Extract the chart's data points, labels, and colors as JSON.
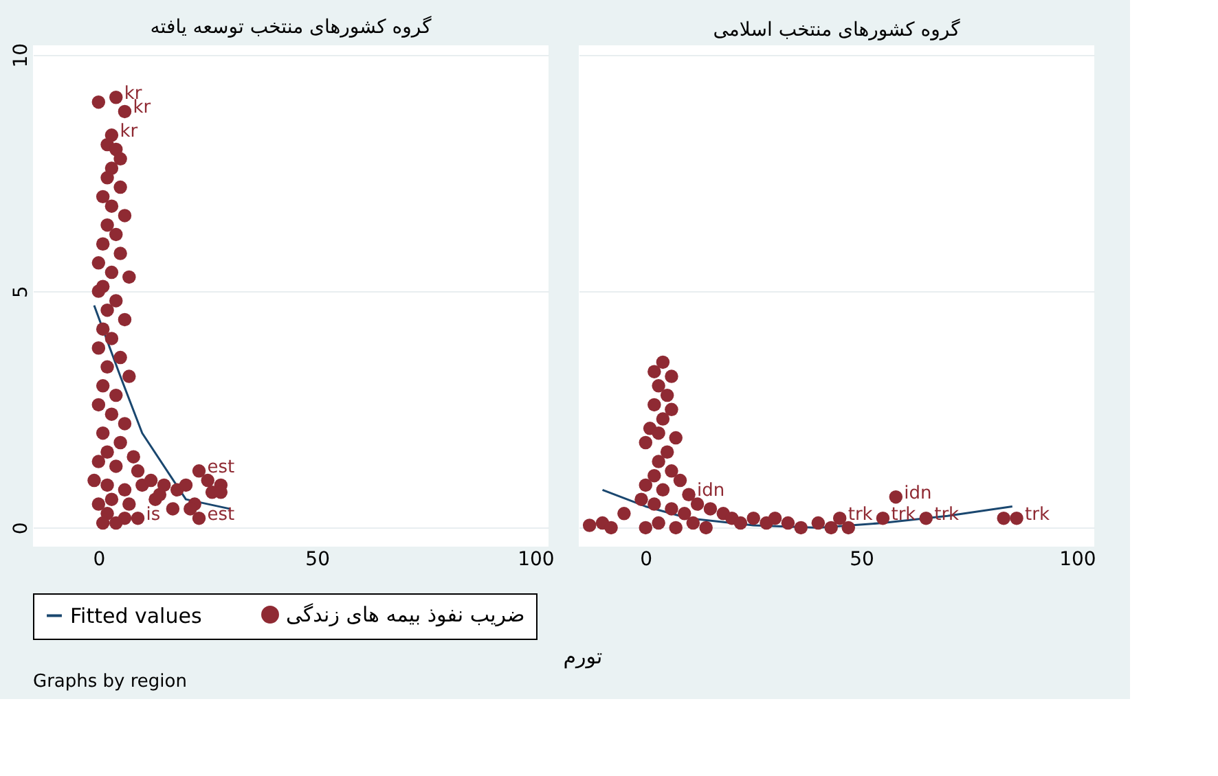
{
  "chart_data": [
    {
      "type": "scatter",
      "title": "گروه کشورهای منتخب توسعه یافته",
      "xlabel": "تورم",
      "legend": "bottom",
      "annotations": [
        "Graphs by region"
      ],
      "xlim": [
        -15,
        103
      ],
      "xticks": [
        0,
        50,
        100
      ],
      "ylim": [
        -0.4,
        10.2
      ],
      "yticks": [
        0,
        5,
        10
      ],
      "grid": "y",
      "series": [
        {
          "name": "Fitted values",
          "type": "line",
          "color": "#1a476f",
          "x": [
            -1,
            5,
            10,
            20,
            30
          ],
          "values": [
            4.7,
            3.2,
            2.0,
            0.6,
            0.4
          ]
        },
        {
          "name": "ضریب نفوذ بیمه های زندگی",
          "marker": "circle",
          "color": "#8f2a33",
          "x": [
            0,
            4,
            6,
            3,
            2,
            4,
            5,
            3,
            2,
            5,
            1,
            3,
            6,
            2,
            4,
            1,
            5,
            0,
            3,
            7,
            1,
            0,
            4,
            2,
            6,
            1,
            3,
            0,
            5,
            2,
            7,
            1,
            4,
            0,
            3,
            6,
            1,
            5,
            2,
            8,
            0,
            4,
            9,
            -1,
            2,
            6,
            10,
            12,
            15,
            18,
            20,
            23,
            25,
            28,
            26,
            22,
            17,
            13,
            21,
            23,
            28,
            9,
            6,
            2,
            1,
            4,
            14,
            3,
            0,
            7
          ],
          "values": [
            9.0,
            9.1,
            8.8,
            8.3,
            8.1,
            8.0,
            7.8,
            7.6,
            7.4,
            7.2,
            7.0,
            6.8,
            6.6,
            6.4,
            6.2,
            6.0,
            5.8,
            5.6,
            5.4,
            5.3,
            5.1,
            5.0,
            4.8,
            4.6,
            4.4,
            4.2,
            4.0,
            3.8,
            3.6,
            3.4,
            3.2,
            3.0,
            2.8,
            2.6,
            2.4,
            2.2,
            2.0,
            1.8,
            1.6,
            1.5,
            1.4,
            1.3,
            1.2,
            1.0,
            0.9,
            0.8,
            0.9,
            1.0,
            0.9,
            0.8,
            0.9,
            1.2,
            1.0,
            0.9,
            0.75,
            0.5,
            0.4,
            0.6,
            0.4,
            0.2,
            0.75,
            0.2,
            0.2,
            0.3,
            0.1,
            0.1,
            0.7,
            0.6,
            0.5,
            0.5
          ],
          "value_labels": [
            null,
            "kr",
            "kr",
            "kr",
            null,
            null,
            null,
            null,
            null,
            null,
            null,
            null,
            null,
            null,
            null,
            null,
            null,
            null,
            null,
            null,
            null,
            null,
            null,
            null,
            null,
            null,
            null,
            null,
            null,
            null,
            null,
            null,
            null,
            null,
            null,
            null,
            null,
            null,
            null,
            null,
            null,
            null,
            null,
            null,
            null,
            null,
            null,
            null,
            null,
            null,
            null,
            "est",
            null,
            null,
            null,
            null,
            null,
            null,
            null,
            "est",
            null,
            "is",
            null,
            null,
            null,
            null,
            null,
            null,
            null,
            null
          ]
        }
      ]
    },
    {
      "type": "scatter",
      "title": "گروه کشورهای منتخب اسلامی",
      "xlim": [
        -15.5,
        104
      ],
      "xticks": [
        0,
        50,
        100
      ],
      "ylim": [
        -0.4,
        10.2
      ],
      "yticks": [
        0,
        5,
        10
      ],
      "grid": "y",
      "tick_labels": "x",
      "series": [
        {
          "type": "line",
          "color": "#1a476f",
          "x": [
            -10,
            0,
            10,
            25,
            40,
            55,
            70,
            85
          ],
          "values": [
            0.8,
            0.45,
            0.2,
            0.05,
            0.0,
            0.1,
            0.25,
            0.45
          ]
        },
        {
          "marker": "circle",
          "color": "#8f2a33",
          "x": [
            4,
            2,
            6,
            3,
            5,
            2,
            6,
            4,
            1,
            3,
            7,
            0,
            5,
            3,
            6,
            2,
            8,
            0,
            4,
            -1,
            10,
            2,
            12,
            6,
            15,
            -5,
            9,
            18,
            -10,
            -13,
            -8,
            0,
            3,
            7,
            11,
            14,
            20,
            22,
            25,
            28,
            30,
            33,
            36,
            40,
            43,
            45,
            47,
            55,
            58,
            65,
            83,
            86
          ],
          "values": [
            3.5,
            3.3,
            3.2,
            3.0,
            2.8,
            2.6,
            2.5,
            2.3,
            2.1,
            2.0,
            1.9,
            1.8,
            1.6,
            1.4,
            1.2,
            1.1,
            1.0,
            0.9,
            0.8,
            0.6,
            0.7,
            0.5,
            0.5,
            0.4,
            0.4,
            0.3,
            0.3,
            0.3,
            0.1,
            0.05,
            0.0,
            0.0,
            0.1,
            0.0,
            0.1,
            0.0,
            0.2,
            0.1,
            0.2,
            0.1,
            0.2,
            0.1,
            0.0,
            0.1,
            0.0,
            0.2,
            0.0,
            0.2,
            0.65,
            0.2,
            0.2,
            0.2
          ],
          "value_labels": [
            null,
            null,
            null,
            null,
            null,
            null,
            null,
            null,
            null,
            null,
            null,
            null,
            null,
            null,
            null,
            null,
            null,
            null,
            null,
            null,
            "idn",
            null,
            null,
            null,
            null,
            null,
            null,
            null,
            null,
            null,
            null,
            null,
            null,
            null,
            null,
            null,
            null,
            null,
            null,
            null,
            null,
            null,
            null,
            null,
            null,
            "trk",
            null,
            "trk",
            "idn",
            "trk",
            null,
            "trk"
          ]
        }
      ]
    }
  ]
}
